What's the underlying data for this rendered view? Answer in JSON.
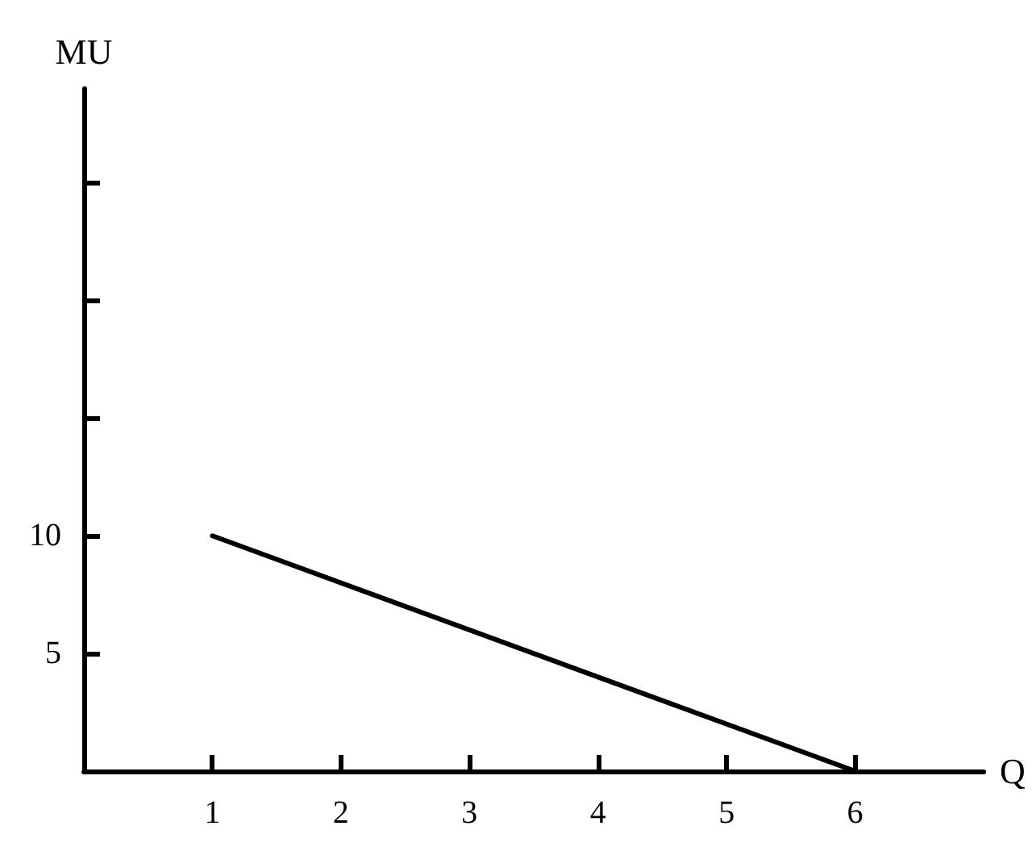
{
  "chart_data": {
    "type": "line",
    "xlabel": "Q",
    "ylabel": "MU",
    "x": [
      1,
      6
    ],
    "series": [
      {
        "color": "#000000",
        "values": [
          10,
          0
        ]
      }
    ],
    "xlim": [
      0,
      7
    ],
    "ylim": [
      0,
      29
    ],
    "xticks": [
      1,
      2,
      3,
      4,
      5,
      6
    ],
    "yticks": [
      5,
      10,
      {
        "value": 15,
        "label": null
      },
      {
        "value": 20,
        "label": null
      },
      {
        "value": 25,
        "label": null
      }
    ],
    "marker": "none",
    "line_style": "solid"
  }
}
